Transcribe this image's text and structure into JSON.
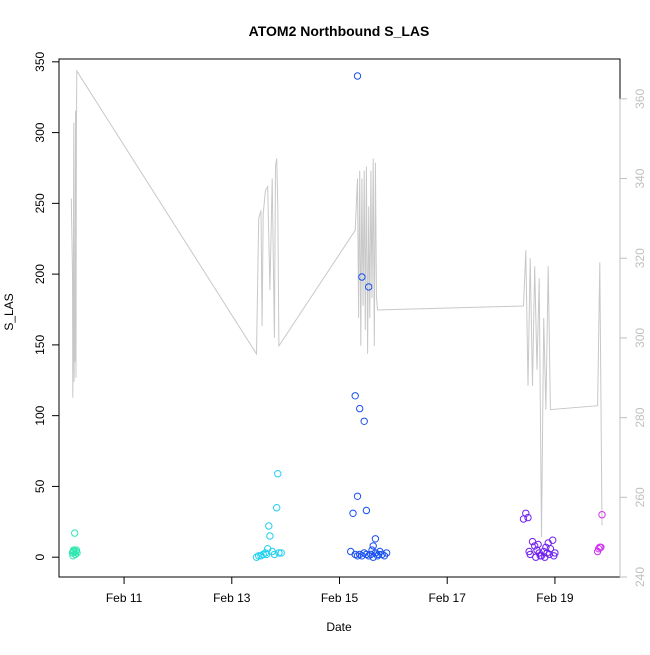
{
  "chart_data": {
    "type": "scatter",
    "title": "ATOM2 Northbound S_LAS",
    "xlabel": "Date",
    "ylabel": "S_LAS",
    "xlim": [
      "2023-02-09T19:00",
      "2023-02-20T05:00"
    ],
    "ylim": [
      -14,
      352
    ],
    "y2lim": [
      240,
      370
    ],
    "x_ticks": [
      {
        "date": "2023-02-11T00:00",
        "label": "Feb 11"
      },
      {
        "date": "2023-02-13T00:00",
        "label": "Feb 13"
      },
      {
        "date": "2023-02-15T00:00",
        "label": "Feb 15"
      },
      {
        "date": "2023-02-17T00:00",
        "label": "Feb 17"
      },
      {
        "date": "2023-02-19T00:00",
        "label": "Feb 19"
      }
    ],
    "y_ticks": [
      0,
      50,
      100,
      150,
      200,
      250,
      300,
      350
    ],
    "y2_ticks": [
      240,
      260,
      280,
      300,
      320,
      340,
      360
    ],
    "grid": false,
    "legend": "none",
    "colors": {
      "line": "#c8c8c8",
      "axis": "#000000",
      "right_axis": "#c0c0c0",
      "points": [
        "#2ee8b0",
        "#20d0f0",
        "#1850f0",
        "#7020f0",
        "#d030f0"
      ]
    },
    "series": [
      {
        "color": "#2ee8b0",
        "points": [
          [
            "2023-02-10T01:00",
            3
          ],
          [
            "2023-02-10T01:15",
            1
          ],
          [
            "2023-02-10T01:30",
            5
          ],
          [
            "2023-02-10T01:45",
            4
          ],
          [
            "2023-02-10T02:00",
            17
          ],
          [
            "2023-02-10T02:15",
            2
          ],
          [
            "2023-02-10T02:30",
            4
          ],
          [
            "2023-02-10T03:00",
            3
          ],
          [
            "2023-02-10T01:20",
            4
          ],
          [
            "2023-02-10T02:45",
            5
          ]
        ]
      },
      {
        "color": "#20d0f0",
        "points": [
          [
            "2023-02-13T11:00",
            0
          ],
          [
            "2023-02-13T12:00",
            1
          ],
          [
            "2023-02-13T13:00",
            1
          ],
          [
            "2023-02-13T14:00",
            2
          ],
          [
            "2023-02-13T15:00",
            3
          ],
          [
            "2023-02-13T16:00",
            6
          ],
          [
            "2023-02-13T16:30",
            22
          ],
          [
            "2023-02-13T17:00",
            15
          ],
          [
            "2023-02-13T18:00",
            4
          ],
          [
            "2023-02-13T19:00",
            2
          ],
          [
            "2023-02-13T20:00",
            35
          ],
          [
            "2023-02-13T20:30",
            59
          ],
          [
            "2023-02-13T21:00",
            3
          ],
          [
            "2023-02-13T22:00",
            3
          ],
          [
            "2023-02-13T15:30",
            2
          ]
        ]
      },
      {
        "color": "#1850f0",
        "points": [
          [
            "2023-02-15T08:00",
            340
          ],
          [
            "2023-02-15T10:00",
            198
          ],
          [
            "2023-02-15T13:00",
            191
          ],
          [
            "2023-02-15T07:00",
            114
          ],
          [
            "2023-02-15T09:00",
            105
          ],
          [
            "2023-02-15T11:00",
            96
          ],
          [
            "2023-02-15T08:00",
            43
          ],
          [
            "2023-02-15T12:00",
            33
          ],
          [
            "2023-02-15T06:00",
            31
          ],
          [
            "2023-02-15T16:00",
            13
          ],
          [
            "2023-02-15T15:00",
            8
          ],
          [
            "2023-02-15T05:00",
            4
          ],
          [
            "2023-02-15T07:00",
            2
          ],
          [
            "2023-02-15T08:00",
            1
          ],
          [
            "2023-02-15T09:00",
            2
          ],
          [
            "2023-02-15T10:00",
            1
          ],
          [
            "2023-02-15T11:00",
            3
          ],
          [
            "2023-02-15T12:00",
            2
          ],
          [
            "2023-02-15T13:00",
            1
          ],
          [
            "2023-02-15T14:00",
            2
          ],
          [
            "2023-02-15T15:00",
            0
          ],
          [
            "2023-02-15T16:00",
            3
          ],
          [
            "2023-02-15T17:00",
            1
          ],
          [
            "2023-02-15T18:00",
            4
          ],
          [
            "2023-02-15T19:00",
            2
          ],
          [
            "2023-02-15T20:00",
            1
          ],
          [
            "2023-02-15T21:00",
            3
          ],
          [
            "2023-02-15T14:30",
            5
          ],
          [
            "2023-02-15T17:30",
            2
          ]
        ]
      },
      {
        "color": "#7020f0",
        "points": [
          [
            "2023-02-18T10:00",
            27
          ],
          [
            "2023-02-18T11:00",
            31
          ],
          [
            "2023-02-18T12:00",
            28
          ],
          [
            "2023-02-18T14:00",
            11
          ],
          [
            "2023-02-18T15:00",
            8
          ],
          [
            "2023-02-18T16:00",
            5
          ],
          [
            "2023-02-18T17:00",
            3
          ],
          [
            "2023-02-18T18:00",
            1
          ],
          [
            "2023-02-18T19:00",
            4
          ],
          [
            "2023-02-18T20:00",
            7
          ],
          [
            "2023-02-18T21:00",
            10
          ],
          [
            "2023-02-18T22:00",
            6
          ],
          [
            "2023-02-18T23:00",
            12
          ],
          [
            "2023-02-19T00:00",
            3
          ],
          [
            "2023-02-18T13:00",
            2
          ],
          [
            "2023-02-18T15:30",
            0
          ],
          [
            "2023-02-18T17:30",
            1
          ],
          [
            "2023-02-18T19:30",
            0
          ],
          [
            "2023-02-18T21:30",
            2
          ],
          [
            "2023-02-18T23:30",
            1
          ],
          [
            "2023-02-18T12:30",
            4
          ],
          [
            "2023-02-18T16:30",
            9
          ],
          [
            "2023-02-18T20:30",
            3
          ]
        ]
      },
      {
        "color": "#d030f0",
        "points": [
          [
            "2023-02-19T19:00",
            4
          ],
          [
            "2023-02-19T19:30",
            6
          ],
          [
            "2023-02-19T20:00",
            7
          ],
          [
            "2023-02-19T20:30",
            7
          ],
          [
            "2023-02-19T21:00",
            30
          ]
        ]
      }
    ],
    "line_series_y2": [
      [
        "2023-02-10T00:30",
        335
      ],
      [
        "2023-02-10T01:00",
        316
      ],
      [
        "2023-02-10T01:10",
        285
      ],
      [
        "2023-02-10T01:20",
        300
      ],
      [
        "2023-02-10T01:35",
        354
      ],
      [
        "2023-02-10T01:45",
        289
      ],
      [
        "2023-02-10T01:55",
        315
      ],
      [
        "2023-02-10T02:05",
        294
      ],
      [
        "2023-02-10T02:15",
        343
      ],
      [
        "2023-02-10T02:25",
        357
      ],
      [
        "2023-02-10T02:35",
        290
      ],
      [
        "2023-02-10T02:45",
        352
      ],
      [
        "2023-02-10T02:55",
        367
      ],
      [
        "2023-02-13T11:00",
        296
      ],
      [
        "2023-02-13T12:00",
        330
      ],
      [
        "2023-02-13T13:00",
        332
      ],
      [
        "2023-02-13T13:30",
        303
      ],
      [
        "2023-02-13T14:00",
        331
      ],
      [
        "2023-02-13T15:00",
        337
      ],
      [
        "2023-02-13T16:00",
        338
      ],
      [
        "2023-02-13T17:00",
        312
      ],
      [
        "2023-02-13T18:00",
        340
      ],
      [
        "2023-02-13T19:00",
        300
      ],
      [
        "2023-02-13T19:30",
        343
      ],
      [
        "2023-02-13T20:00",
        345
      ],
      [
        "2023-02-13T20:30",
        333
      ],
      [
        "2023-02-13T21:00",
        298
      ],
      [
        "2023-02-15T07:00",
        327
      ],
      [
        "2023-02-15T08:00",
        340
      ],
      [
        "2023-02-15T08:30",
        305
      ],
      [
        "2023-02-15T09:00",
        342
      ],
      [
        "2023-02-15T09:30",
        298
      ],
      [
        "2023-02-15T10:00",
        340
      ],
      [
        "2023-02-15T10:30",
        308
      ],
      [
        "2023-02-15T11:00",
        342
      ],
      [
        "2023-02-15T11:30",
        302
      ],
      [
        "2023-02-15T12:00",
        343
      ],
      [
        "2023-02-15T12:30",
        296
      ],
      [
        "2023-02-15T13:00",
        333
      ],
      [
        "2023-02-15T13:30",
        305
      ],
      [
        "2023-02-15T14:00",
        342
      ],
      [
        "2023-02-15T14:30",
        310
      ],
      [
        "2023-02-15T15:00",
        345
      ],
      [
        "2023-02-15T15:30",
        298
      ],
      [
        "2023-02-15T16:00",
        344
      ],
      [
        "2023-02-15T16:30",
        310
      ],
      [
        "2023-02-15T17:00",
        307
      ],
      [
        "2023-02-18T10:00",
        308
      ],
      [
        "2023-02-18T11:00",
        322
      ],
      [
        "2023-02-18T12:00",
        288
      ],
      [
        "2023-02-18T13:00",
        320
      ],
      [
        "2023-02-18T14:00",
        288
      ],
      [
        "2023-02-18T15:00",
        318
      ],
      [
        "2023-02-18T16:00",
        292
      ],
      [
        "2023-02-18T17:00",
        315
      ],
      [
        "2023-02-18T18:00",
        250
      ],
      [
        "2023-02-18T19:00",
        305
      ],
      [
        "2023-02-18T20:00",
        282
      ],
      [
        "2023-02-18T21:00",
        318
      ],
      [
        "2023-02-18T22:00",
        282
      ],
      [
        "2023-02-19T19:00",
        283
      ],
      [
        "2023-02-19T20:00",
        319
      ],
      [
        "2023-02-19T21:00",
        253
      ]
    ]
  }
}
